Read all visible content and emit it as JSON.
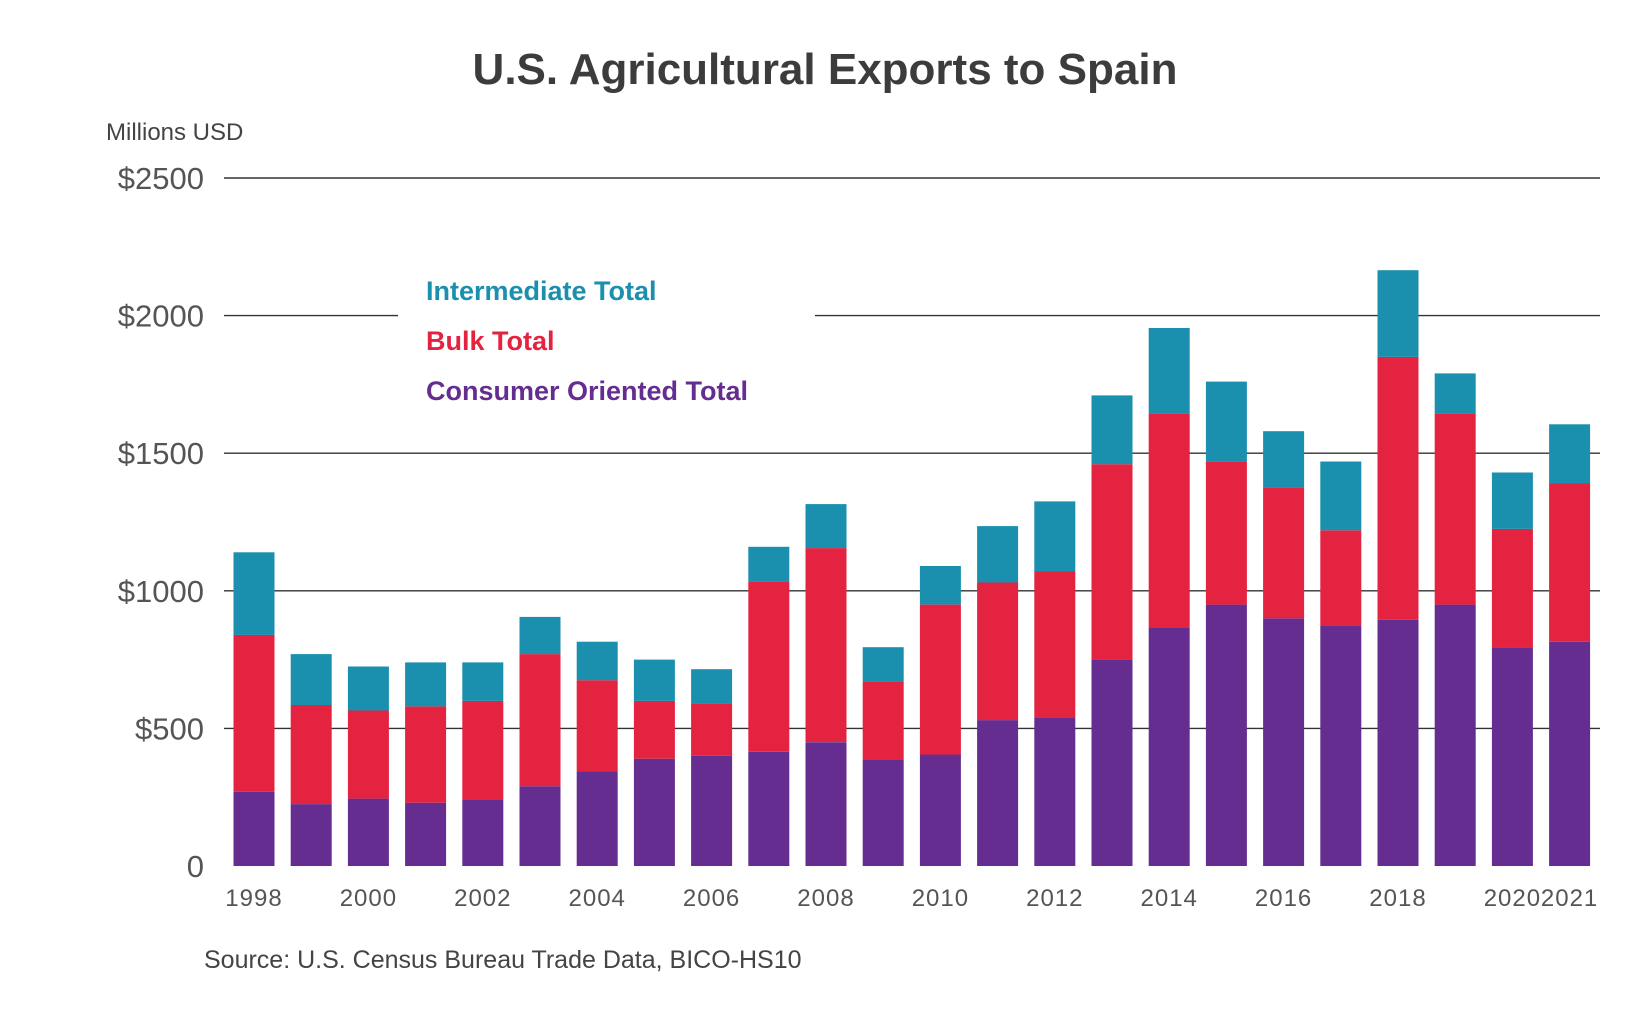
{
  "chart_data": {
    "type": "bar",
    "stacked": true,
    "title": "U.S. Agricultural Exports to Spain",
    "ylabel": "Millions USD",
    "xlabel": "",
    "ylim": [
      0,
      2500
    ],
    "yticks": [
      0,
      500,
      1000,
      1500,
      2000,
      2500
    ],
    "ytick_labels": [
      "0",
      "$500",
      "$1000",
      "$1500",
      "$2000",
      "$2500"
    ],
    "grid": true,
    "legend_position": "top-left",
    "categories": [
      "1998",
      "1999",
      "2000",
      "2001",
      "2002",
      "2003",
      "2004",
      "2005",
      "2006",
      "2007",
      "2008",
      "2009",
      "2010",
      "2011",
      "2012",
      "2013",
      "2014",
      "2015",
      "2016",
      "2017",
      "2018",
      "2019",
      "2020",
      "2021"
    ],
    "xtick_labels": [
      "1998",
      "",
      "2000",
      "",
      "2002",
      "",
      "2004",
      "",
      "2006",
      "",
      "2008",
      "",
      "2010",
      "",
      "2012",
      "",
      "2014",
      "",
      "2016",
      "",
      "2018",
      "",
      "2020",
      "2021"
    ],
    "series": [
      {
        "name": "Consumer Oriented Total",
        "color": "#652d90",
        "values": [
          270,
          225,
          245,
          230,
          240,
          290,
          345,
          390,
          400,
          415,
          450,
          385,
          405,
          530,
          540,
          750,
          865,
          950,
          900,
          875,
          895,
          950,
          795,
          815
        ]
      },
      {
        "name": "Bulk Total",
        "color": "#e32340",
        "values": [
          570,
          360,
          320,
          350,
          360,
          480,
          330,
          210,
          190,
          620,
          705,
          285,
          545,
          500,
          530,
          710,
          780,
          520,
          475,
          345,
          955,
          695,
          430,
          575
        ]
      },
      {
        "name": "Intermediate Total",
        "color": "#1b8fae",
        "values": [
          300,
          185,
          160,
          160,
          140,
          135,
          140,
          150,
          125,
          125,
          160,
          125,
          140,
          205,
          255,
          250,
          310,
          290,
          205,
          250,
          315,
          145,
          205,
          215
        ]
      }
    ],
    "legend": [
      "Intermediate Total",
      "Bulk Total",
      "Consumer Oriented Total"
    ],
    "source": "Source: U.S. Census Bureau Trade Data, BICO-HS10"
  }
}
